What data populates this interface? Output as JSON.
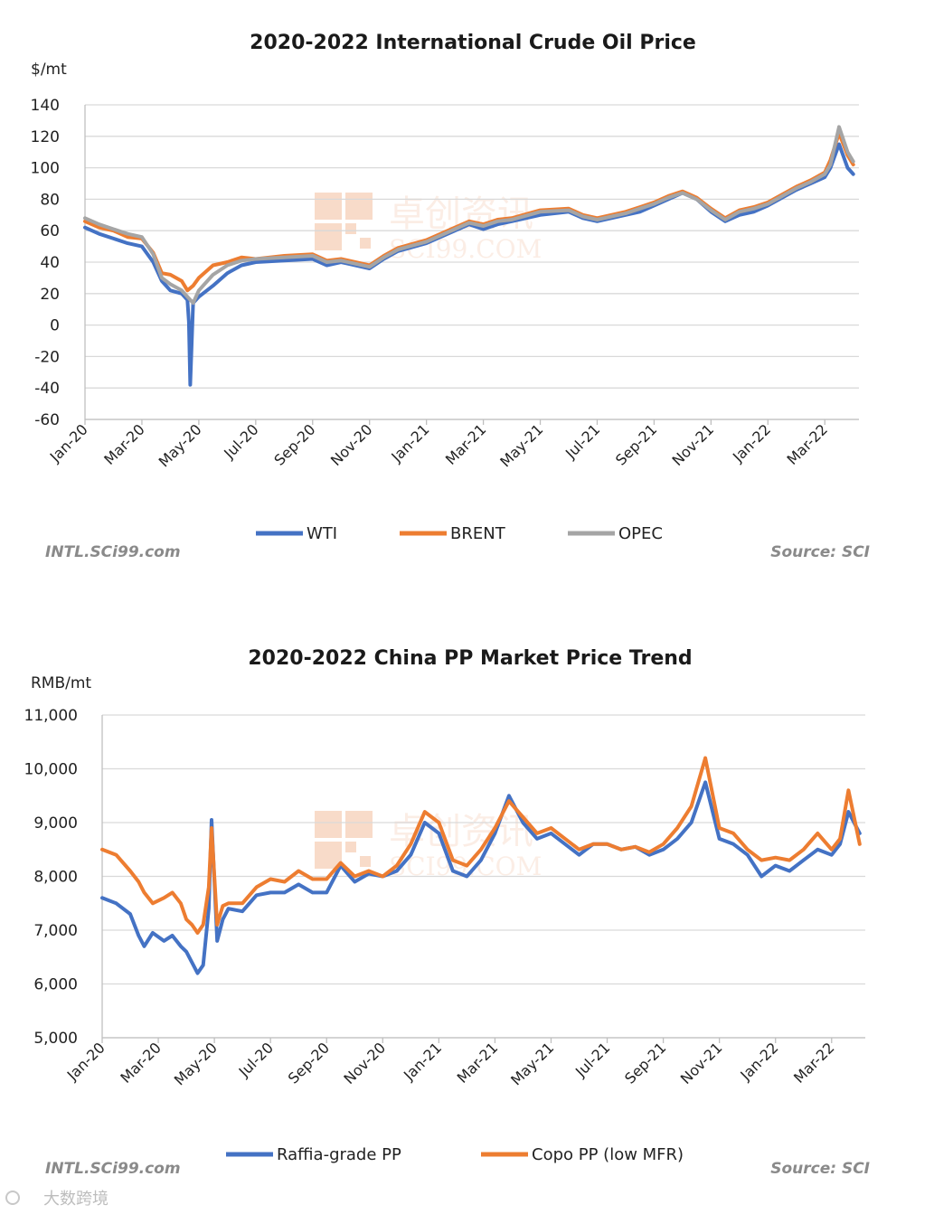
{
  "chart_data": [
    {
      "type": "line",
      "title": "2020-2022  International Crude Oil Price",
      "ylabel": "$/mt",
      "ylim": [
        -60,
        140
      ],
      "yticks": [
        140,
        120,
        100,
        80,
        60,
        40,
        20,
        0,
        -20,
        -40,
        -60
      ],
      "ytick_labels": [
        "140",
        "120",
        "100",
        "80",
        "60",
        "40",
        "20",
        "0",
        "-20",
        "-40",
        "-60"
      ],
      "xlim": [
        0,
        27.2
      ],
      "xticks": [
        0,
        2,
        4,
        6,
        8,
        10,
        12,
        14,
        16,
        18,
        20,
        22,
        24,
        26
      ],
      "xtick_labels": [
        "Jan-20",
        "Mar-20",
        "May-20",
        "Jul-20",
        "Sep-20",
        "Nov-20",
        "Jan-21",
        "Mar-21",
        "May-21",
        "Jul-21",
        "Sep-21",
        "Nov-21",
        "Jan-22",
        "Mar-22"
      ],
      "grid": true,
      "legend_position": "bottom",
      "series": [
        {
          "name": "WTI",
          "color": "#4472c4",
          "x": [
            0,
            0.5,
            1,
            1.5,
            2,
            2.4,
            2.7,
            3,
            3.4,
            3.6,
            3.65,
            3.7,
            3.8,
            4,
            4.5,
            5,
            5.5,
            6,
            7,
            8,
            8.5,
            9,
            10,
            10.5,
            11,
            12,
            13,
            13.5,
            14,
            14.5,
            15,
            16,
            17,
            17.5,
            18,
            19,
            19.5,
            20,
            20.5,
            21,
            21.5,
            22,
            22.5,
            23,
            23.5,
            24,
            25,
            25.5,
            26,
            26.2,
            26.5,
            26.8,
            27
          ],
          "y": [
            62,
            58,
            55,
            52,
            50,
            40,
            28,
            22,
            20,
            16,
            2,
            -38,
            14,
            18,
            25,
            33,
            38,
            40,
            41,
            42,
            38,
            40,
            36,
            42,
            47,
            52,
            60,
            64,
            61,
            64,
            66,
            70,
            72,
            68,
            66,
            70,
            72,
            76,
            80,
            84,
            80,
            72,
            66,
            70,
            72,
            76,
            86,
            90,
            94,
            100,
            115,
            100,
            96
          ]
        },
        {
          "name": "BRENT",
          "color": "#ed7d31",
          "x": [
            0,
            0.5,
            1,
            1.5,
            2,
            2.4,
            2.7,
            3,
            3.4,
            3.6,
            3.8,
            4,
            4.5,
            5,
            5.5,
            6,
            7,
            8,
            8.5,
            9,
            10,
            10.5,
            11,
            12,
            13,
            13.5,
            14,
            14.5,
            15,
            16,
            17,
            17.5,
            18,
            19,
            19.5,
            20,
            20.5,
            21,
            21.5,
            22,
            22.5,
            23,
            23.5,
            24,
            25,
            25.5,
            26,
            26.2,
            26.5,
            26.8,
            27
          ],
          "y": [
            66,
            62,
            60,
            56,
            55,
            46,
            33,
            32,
            28,
            22,
            25,
            30,
            38,
            40,
            43,
            42,
            44,
            45,
            41,
            42,
            38,
            44,
            49,
            54,
            62,
            66,
            64,
            67,
            68,
            73,
            74,
            70,
            68,
            72,
            75,
            78,
            82,
            85,
            81,
            74,
            68,
            73,
            75,
            78,
            88,
            92,
            97,
            105,
            122,
            108,
            102
          ]
        },
        {
          "name": "OPEC",
          "color": "#a5a5a5",
          "x": [
            0,
            0.5,
            1,
            1.5,
            2,
            2.4,
            2.7,
            3,
            3.4,
            3.6,
            3.8,
            4,
            4.5,
            5,
            5.5,
            6,
            7,
            8,
            8.5,
            9,
            10,
            10.5,
            11,
            12,
            13,
            13.5,
            14,
            14.5,
            15,
            16,
            17,
            17.5,
            18,
            19,
            19.5,
            20,
            20.5,
            21,
            21.5,
            22,
            22.5,
            23,
            23.5,
            24,
            25,
            25.5,
            26,
            26.2,
            26.5,
            26.8,
            27
          ],
          "y": [
            68,
            64,
            61,
            58,
            56,
            45,
            30,
            26,
            22,
            18,
            14,
            22,
            32,
            38,
            41,
            42,
            43,
            44,
            40,
            41,
            37,
            43,
            48,
            53,
            61,
            65,
            63,
            66,
            67,
            72,
            73,
            69,
            67,
            71,
            74,
            77,
            81,
            84,
            80,
            73,
            67,
            72,
            74,
            77,
            87,
            91,
            96,
            102,
            126,
            110,
            104
          ]
        }
      ]
    },
    {
      "type": "line",
      "title": "2020-2022  China PP Market Price Trend",
      "ylabel": "RMB/mt",
      "ylim": [
        5000,
        11000
      ],
      "yticks": [
        11000,
        10000,
        9000,
        8000,
        7000,
        6000,
        5000
      ],
      "ytick_labels": [
        "11,000",
        "10,000",
        "9,000",
        "8,000",
        "7,000",
        "6,000",
        "5,000"
      ],
      "xlim": [
        0,
        27.2
      ],
      "xticks": [
        0,
        2,
        4,
        6,
        8,
        10,
        12,
        14,
        16,
        18,
        20,
        22,
        24,
        26
      ],
      "xtick_labels": [
        "Jan-20",
        "Mar-20",
        "May-20",
        "Jul-20",
        "Sep-20",
        "Nov-20",
        "Jan-21",
        "Mar-21",
        "May-21",
        "Jul-21",
        "Sep-21",
        "Nov-21",
        "Jan-22",
        "Mar-22"
      ],
      "grid": true,
      "legend_position": "bottom",
      "series": [
        {
          "name": "Raffia-grade PP",
          "color": "#4472c4",
          "x": [
            0,
            0.5,
            1,
            1.3,
            1.5,
            1.8,
            2.2,
            2.5,
            2.8,
            3,
            3.2,
            3.4,
            3.6,
            3.8,
            3.9,
            4.1,
            4.3,
            4.5,
            5,
            5.5,
            6,
            6.5,
            7,
            7.5,
            8,
            8.5,
            9,
            9.5,
            10,
            10.5,
            11,
            11.5,
            12,
            12.5,
            13,
            13.5,
            14,
            14.5,
            15,
            15.5,
            16,
            16.5,
            17,
            17.5,
            18,
            18.5,
            19,
            19.5,
            20,
            20.5,
            21,
            21.5,
            22,
            22.5,
            23,
            23.5,
            24,
            24.5,
            25,
            25.5,
            26,
            26.3,
            26.6,
            27
          ],
          "y": [
            7600,
            7500,
            7300,
            6900,
            6700,
            6950,
            6800,
            6900,
            6700,
            6600,
            6400,
            6200,
            6350,
            7400,
            9050,
            6800,
            7200,
            7400,
            7350,
            7650,
            7700,
            7700,
            7850,
            7700,
            7700,
            8200,
            7900,
            8050,
            8000,
            8100,
            8400,
            9000,
            8800,
            8100,
            8000,
            8300,
            8800,
            9500,
            9000,
            8700,
            8800,
            8600,
            8400,
            8600,
            8600,
            8500,
            8550,
            8400,
            8500,
            8700,
            9000,
            9750,
            8700,
            8600,
            8400,
            8000,
            8200,
            8100,
            8300,
            8500,
            8400,
            8600,
            9200,
            8800
          ]
        },
        {
          "name": "Copo PP (low MFR)",
          "color": "#ed7d31",
          "x": [
            0,
            0.5,
            1,
            1.3,
            1.5,
            1.8,
            2.2,
            2.5,
            2.8,
            3,
            3.2,
            3.4,
            3.6,
            3.8,
            3.9,
            4.1,
            4.3,
            4.5,
            5,
            5.5,
            6,
            6.5,
            7,
            7.5,
            8,
            8.5,
            9,
            9.5,
            10,
            10.5,
            11,
            11.5,
            12,
            12.5,
            13,
            13.5,
            14,
            14.5,
            15,
            15.5,
            16,
            16.5,
            17,
            17.5,
            18,
            18.5,
            19,
            19.5,
            20,
            20.5,
            21,
            21.5,
            22,
            22.5,
            23,
            23.5,
            24,
            24.5,
            25,
            25.5,
            26,
            26.3,
            26.6,
            27
          ],
          "y": [
            8500,
            8400,
            8100,
            7900,
            7700,
            7500,
            7600,
            7700,
            7500,
            7200,
            7100,
            6950,
            7100,
            7800,
            8900,
            7100,
            7450,
            7500,
            7500,
            7800,
            7950,
            7900,
            8100,
            7950,
            7950,
            8250,
            8000,
            8100,
            8000,
            8200,
            8600,
            9200,
            9000,
            8300,
            8200,
            8500,
            8900,
            9400,
            9100,
            8800,
            8900,
            8700,
            8500,
            8600,
            8600,
            8500,
            8550,
            8450,
            8600,
            8900,
            9300,
            10200,
            8900,
            8800,
            8500,
            8300,
            8350,
            8300,
            8500,
            8800,
            8500,
            8700,
            9600,
            8600
          ]
        }
      ]
    }
  ],
  "footer": {
    "site_top": "INTL.SCi99.com",
    "source_top": "Source: SCI",
    "site_bottom": "INTL.SCi99.com",
    "source_bottom": "Source: SCI"
  },
  "watermark": {
    "chinese": "卓创资讯",
    "latin": "SCI99.COM",
    "corner": "大数跨境"
  }
}
